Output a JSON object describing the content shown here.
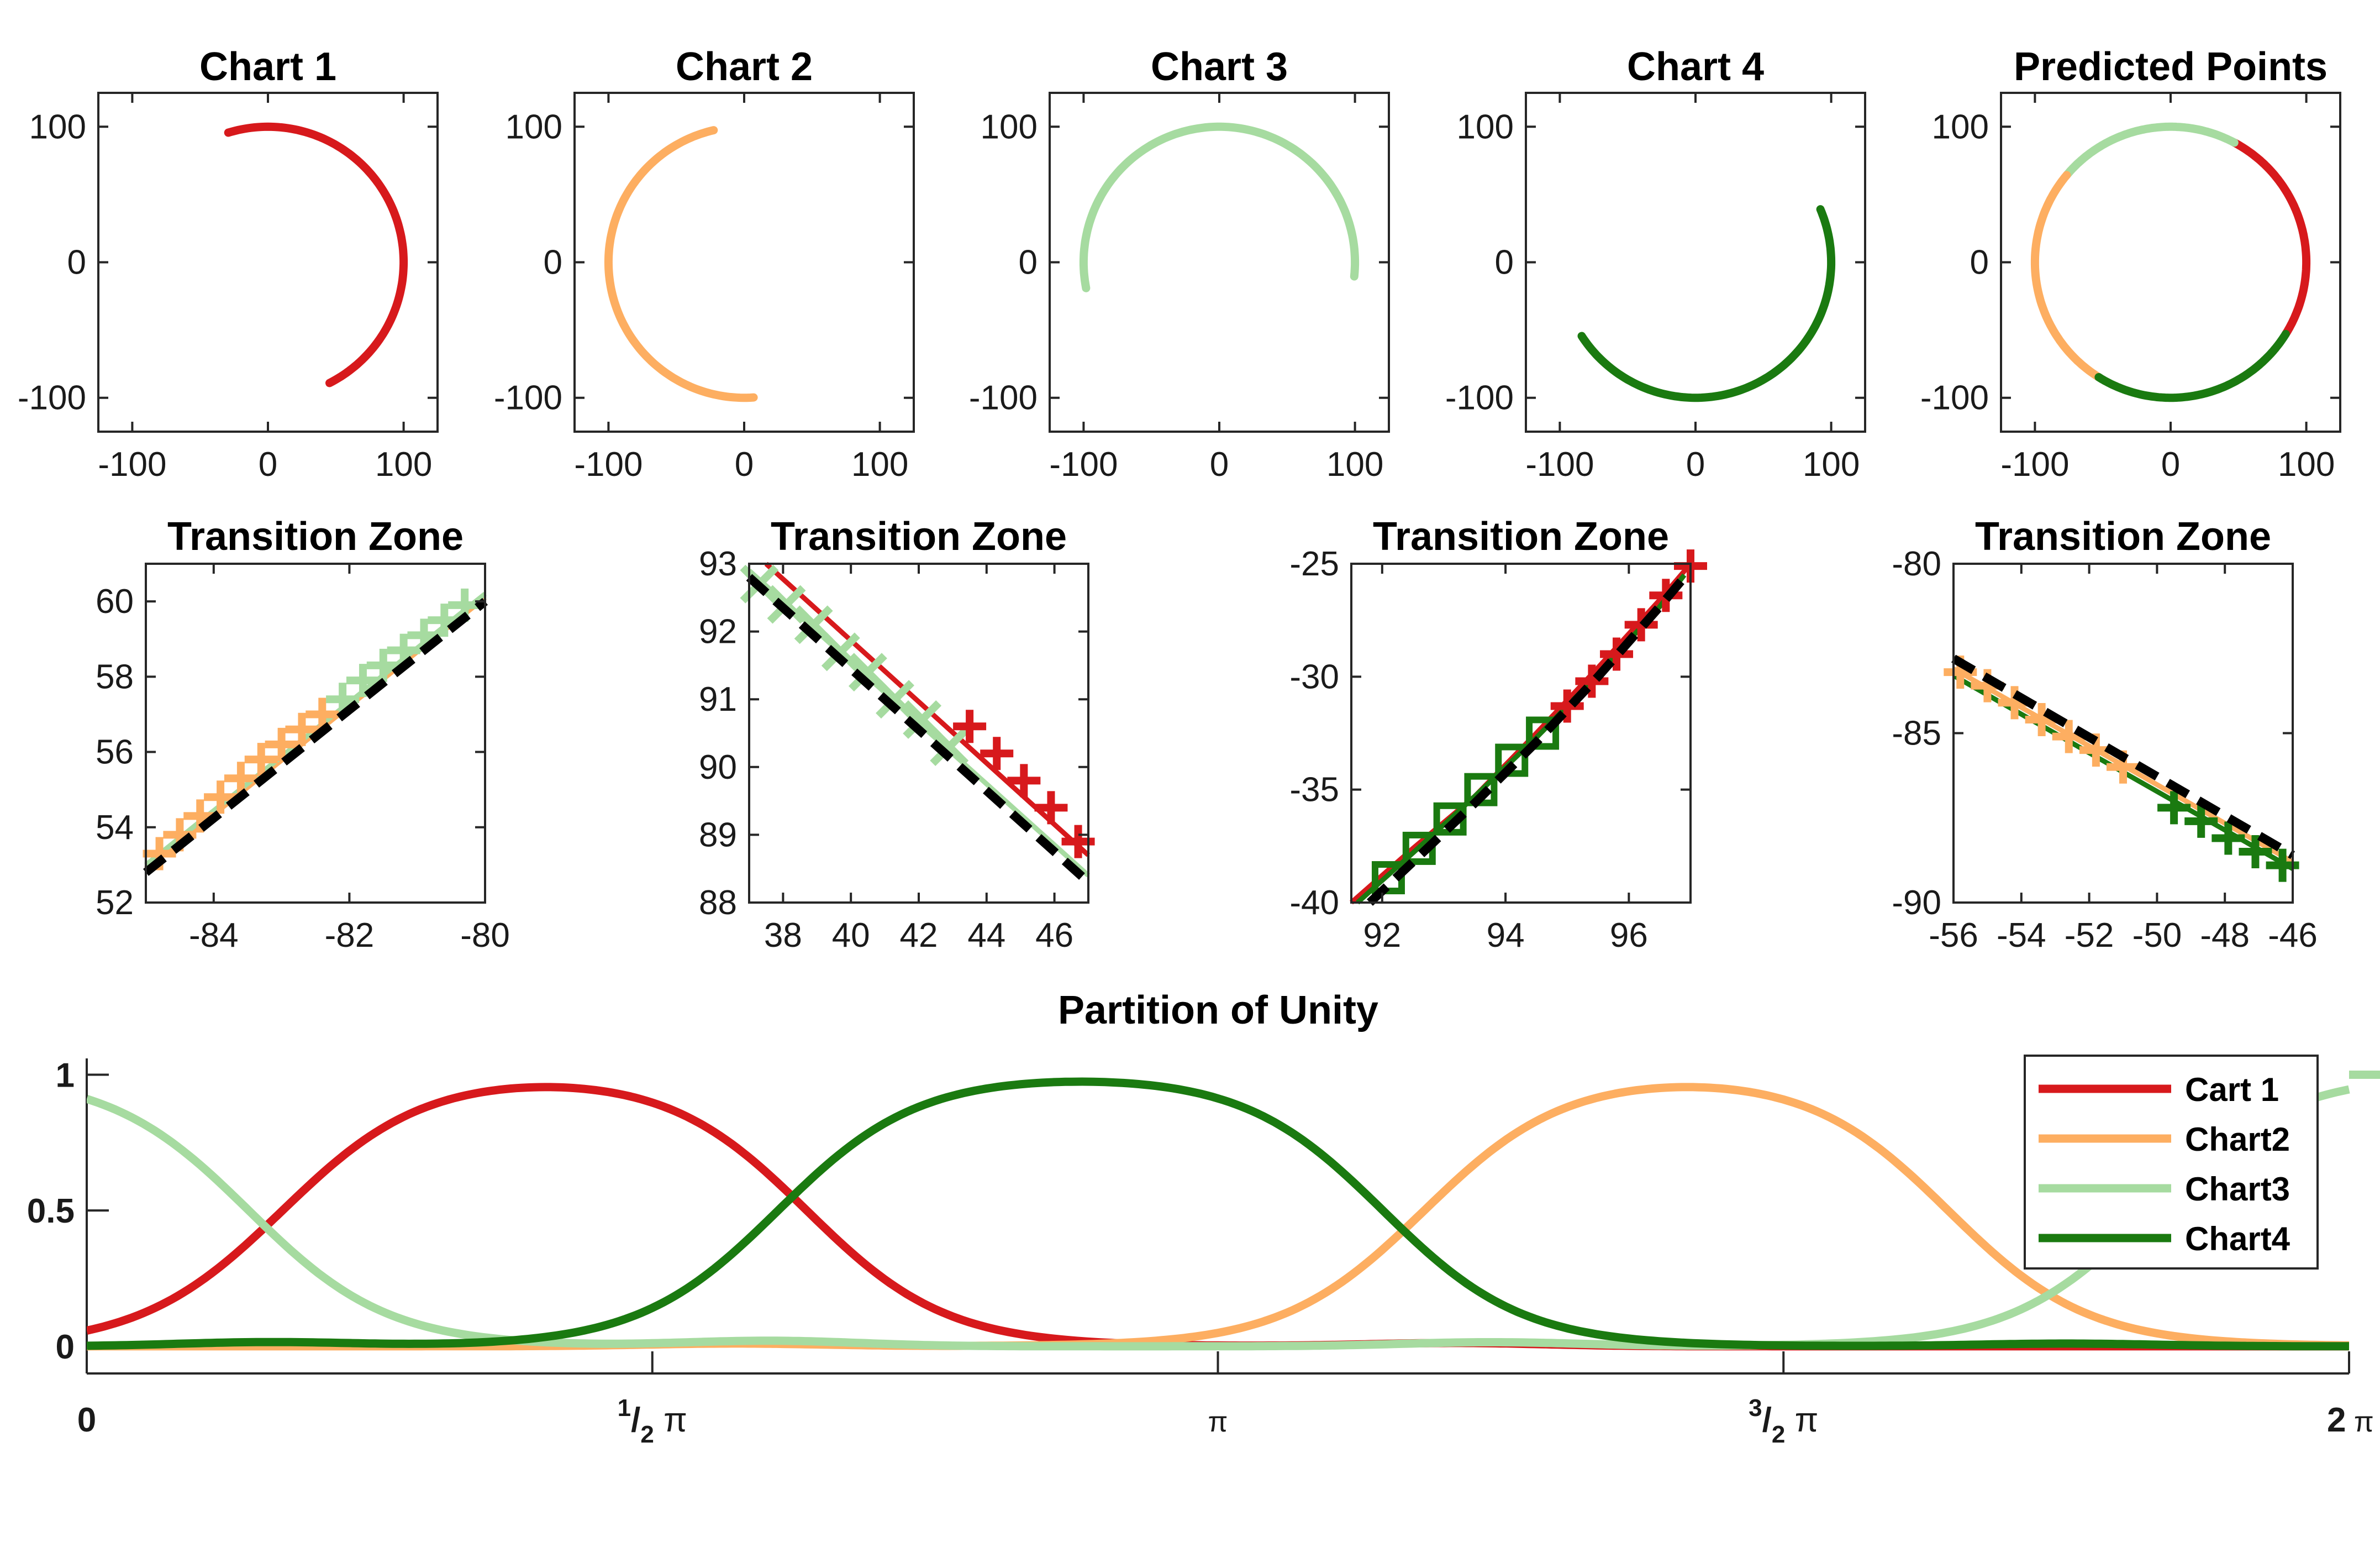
{
  "colors": {
    "chart1": "#d7191c",
    "chart2": "#fdae61",
    "chart3": "#a6dba0",
    "chart4": "#1a7a10",
    "fit": "#000000"
  },
  "chart_data": [
    {
      "type": "line",
      "title": "Chart 1",
      "series": [
        {
          "arc_deg": [
            -63,
            107
          ],
          "radius": 100,
          "color_key": "chart1"
        }
      ],
      "xlim": [
        -125,
        125
      ],
      "ylim": [
        -125,
        125
      ],
      "xticks": [
        -100,
        0,
        100
      ],
      "yticks": [
        -100,
        0,
        100
      ]
    },
    {
      "type": "line",
      "title": "Chart 2",
      "series": [
        {
          "arc_deg": [
            103,
            274
          ],
          "radius": 100,
          "color_key": "chart2"
        }
      ],
      "xlim": [
        -125,
        125
      ],
      "ylim": [
        -125,
        125
      ],
      "xticks": [
        -100,
        0,
        100
      ],
      "yticks": [
        -100,
        0,
        100
      ]
    },
    {
      "type": "line",
      "title": "Chart 3",
      "series": [
        {
          "arc_deg": [
            -6,
            191
          ],
          "radius": 100,
          "color_key": "chart3"
        }
      ],
      "xlim": [
        -125,
        125
      ],
      "ylim": [
        -125,
        125
      ],
      "xticks": [
        -100,
        0,
        100
      ],
      "yticks": [
        -100,
        0,
        100
      ]
    },
    {
      "type": "line",
      "title": "Chart 4",
      "series": [
        {
          "arc_deg": [
            213,
            383
          ],
          "radius": 100,
          "color_key": "chart4"
        }
      ],
      "xlim": [
        -125,
        125
      ],
      "ylim": [
        -125,
        125
      ],
      "xticks": [
        -100,
        0,
        100
      ],
      "yticks": [
        -100,
        0,
        100
      ]
    },
    {
      "type": "line",
      "title": "Predicted Points",
      "series": [
        {
          "arc_deg": [
            -32,
            62
          ],
          "radius": 100,
          "color_key": "chart1"
        },
        {
          "arc_deg": [
            62,
            140
          ],
          "radius": 100,
          "color_key": "chart3"
        },
        {
          "arc_deg": [
            140,
            238
          ],
          "radius": 100,
          "color_key": "chart2"
        },
        {
          "arc_deg": [
            238,
            328
          ],
          "radius": 100,
          "color_key": "chart4"
        }
      ],
      "xlim": [
        -125,
        125
      ],
      "ylim": [
        -125,
        125
      ],
      "xticks": [
        -100,
        0,
        100
      ],
      "yticks": [
        -100,
        0,
        100
      ]
    },
    {
      "type": "scatter",
      "title": "Transition Zone",
      "xlim": [
        -85,
        -80
      ],
      "ylim": [
        52,
        61
      ],
      "xticks": [
        -84,
        -82,
        -80
      ],
      "yticks": [
        52,
        54,
        56,
        58,
        60
      ],
      "lines": [
        {
          "color_key": "chart2",
          "x": [
            -85,
            -80
          ],
          "y": [
            52.9,
            60.1
          ]
        },
        {
          "color_key": "chart3",
          "x": [
            -85,
            -80
          ],
          "y": [
            53.0,
            60.2
          ]
        },
        {
          "color_key": "fit",
          "dashed": true,
          "x": [
            -85,
            -80
          ],
          "y": [
            52.8,
            60.0
          ]
        }
      ],
      "markers": [
        {
          "color_key": "chart2",
          "shape": "plus",
          "x": [
            -84.8,
            -84.5,
            -84.2,
            -83.9,
            -83.6,
            -83.3,
            -83.0,
            -82.7,
            -82.4
          ],
          "y": [
            53.3,
            53.8,
            54.3,
            54.8,
            55.3,
            55.8,
            56.2,
            56.6,
            57.0
          ]
        },
        {
          "color_key": "chart3",
          "shape": "plus",
          "x": [
            -82.1,
            -81.8,
            -81.5,
            -81.2,
            -80.9,
            -80.6,
            -80.3
          ],
          "y": [
            57.4,
            57.9,
            58.3,
            58.7,
            59.1,
            59.5,
            59.9
          ]
        }
      ]
    },
    {
      "type": "scatter",
      "title": "Transition Zone",
      "xlim": [
        37,
        47
      ],
      "ylim": [
        88,
        93
      ],
      "xticks": [
        38,
        40,
        42,
        44,
        46
      ],
      "yticks": [
        88,
        89,
        90,
        91,
        92,
        93
      ],
      "lines": [
        {
          "color_key": "chart1",
          "x": [
            37.5,
            47
          ],
          "y": [
            93.0,
            88.7
          ]
        },
        {
          "color_key": "chart3",
          "x": [
            37,
            47
          ],
          "y": [
            92.9,
            88.4
          ]
        },
        {
          "color_key": "fit",
          "dashed": true,
          "x": [
            37,
            47
          ],
          "y": [
            92.8,
            88.3
          ]
        }
      ],
      "markers": [
        {
          "color_key": "chart3",
          "shape": "x",
          "x": [
            37.3,
            38.1,
            38.9,
            39.7,
            40.5,
            41.3,
            42.1,
            42.9
          ],
          "y": [
            92.7,
            92.4,
            92.1,
            91.7,
            91.4,
            91.0,
            90.7,
            90.3
          ]
        },
        {
          "color_key": "chart1",
          "shape": "plus",
          "x": [
            43.5,
            44.3,
            45.1,
            45.9,
            46.7
          ],
          "y": [
            90.6,
            90.2,
            89.8,
            89.4,
            88.9
          ]
        }
      ]
    },
    {
      "type": "scatter",
      "title": "Transition Zone",
      "xlim": [
        91.5,
        97
      ],
      "ylim": [
        -40,
        -25
      ],
      "xticks": [
        92,
        94,
        96
      ],
      "yticks": [
        -40,
        -35,
        -30,
        -25
      ],
      "lines": [
        {
          "color_key": "chart1",
          "x": [
            91.5,
            92.5,
            93.5,
            94.5,
            95.5,
            96.5,
            97
          ],
          "y": [
            -40,
            -37.6,
            -35.3,
            -32.5,
            -29.6,
            -26.6,
            -25
          ]
        },
        {
          "color_key": "chart4",
          "x": [
            91.6,
            92.5,
            93.5,
            94.5,
            95.5,
            96.5,
            96.9
          ],
          "y": [
            -40,
            -37.8,
            -35.3,
            -32.7,
            -29.9,
            -26.9,
            -25.5
          ]
        },
        {
          "color_key": "fit",
          "dashed": true,
          "x": [
            91.8,
            92.5,
            93.5,
            94.5,
            95.5,
            96.5,
            96.9
          ],
          "y": [
            -40,
            -38.2,
            -35.6,
            -32.9,
            -30.0,
            -26.9,
            -25.6
          ]
        }
      ],
      "markers": [
        {
          "color_key": "chart4",
          "shape": "square",
          "x": [
            92.1,
            92.6,
            93.1,
            93.6,
            94.1,
            94.6
          ],
          "y": [
            -38.9,
            -37.6,
            -36.3,
            -35.0,
            -33.7,
            -32.5
          ]
        },
        {
          "color_key": "chart1",
          "shape": "plus",
          "x": [
            95.0,
            95.4,
            95.8,
            96.2,
            96.6,
            97.0
          ],
          "y": [
            -31.3,
            -30.2,
            -29.0,
            -27.7,
            -26.4,
            -25.1
          ]
        }
      ]
    },
    {
      "type": "scatter",
      "title": "Transition Zone",
      "xlim": [
        -56,
        -46
      ],
      "ylim": [
        -90,
        -80
      ],
      "xticks": [
        -56,
        -54,
        -52,
        -50,
        -48,
        -46
      ],
      "yticks": [
        -90,
        -85,
        -80
      ],
      "lines": [
        {
          "color_key": "chart2",
          "x": [
            -56,
            -46
          ],
          "y": [
            -83.1,
            -88.8
          ]
        },
        {
          "color_key": "chart4",
          "x": [
            -56,
            -46
          ],
          "y": [
            -83.3,
            -89.0
          ]
        },
        {
          "color_key": "fit",
          "dashed": true,
          "x": [
            -56,
            -46
          ],
          "y": [
            -82.8,
            -88.6
          ]
        }
      ],
      "markers": [
        {
          "color_key": "chart2",
          "shape": "plus",
          "x": [
            -55.8,
            -55.0,
            -54.2,
            -53.4,
            -52.6,
            -51.8,
            -51.0
          ],
          "y": [
            -83.2,
            -83.6,
            -84.1,
            -84.6,
            -85.1,
            -85.5,
            -86.0
          ]
        },
        {
          "color_key": "chart4",
          "shape": "plus",
          "x": [
            -49.5,
            -48.7,
            -47.9,
            -47.1,
            -46.3
          ],
          "y": [
            -87.2,
            -87.6,
            -88.1,
            -88.5,
            -88.9
          ]
        }
      ]
    },
    {
      "type": "line",
      "title": "Partition of Unity",
      "x_domain": [
        0,
        6.2832
      ],
      "ylim": [
        -0.1,
        1.06
      ],
      "xtick_values": [
        0,
        1.5708,
        3.1416,
        4.7124,
        6.2832
      ],
      "xtick_labels": [
        {
          "main": "0"
        },
        {
          "sup": "1",
          "sub": "2",
          "pi": "π"
        },
        {
          "pi": "π"
        },
        {
          "sup": "3",
          "sub": "2",
          "pi": "π"
        },
        {
          "main": "2",
          "pi": "π"
        }
      ],
      "yticks": [
        0,
        0.5,
        1
      ],
      "ytick_labels": [
        "0",
        "0.5",
        "1"
      ],
      "legend": [
        "Cart 1",
        "Chart2",
        "Chart3",
        "Chart4"
      ],
      "legend_position": "top-right",
      "series": [
        {
          "name": "Cart 1",
          "color_key": "chart1",
          "rise": 0.55,
          "fall": 2.0,
          "width": 0.11,
          "base": [
            0.01,
            0.4,
            0.012,
            3.8,
            0.02,
            5.5
          ]
        },
        {
          "name": "Chart2",
          "color_key": "chart2",
          "rise": 3.72,
          "fall": 5.17,
          "width": 0.11,
          "base": [
            0.01,
            1.8,
            0.008,
            3.6,
            0.0,
            0.0
          ]
        },
        {
          "name": "Chart3",
          "color_key": "chart3",
          "rise": 5.73,
          "fall": 0.45,
          "width": 0.11,
          "wrap": true,
          "base": [
            0.02,
            1.9,
            0.015,
            3.9,
            0.01,
            2.6
          ]
        },
        {
          "name": "Chart4",
          "color_key": "chart4",
          "rise": 1.92,
          "fall": 3.6,
          "width": 0.11,
          "base": [
            0.015,
            0.5,
            0.01,
            5.5,
            0.0,
            0.0
          ]
        }
      ]
    }
  ]
}
